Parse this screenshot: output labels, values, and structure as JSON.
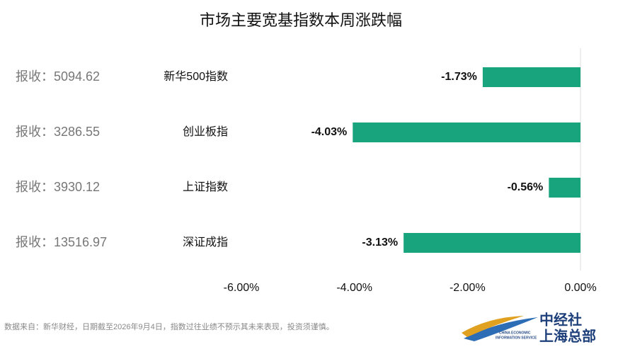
{
  "chart_data": {
    "type": "bar",
    "orientation": "horizontal",
    "title": "市场主要宽基指数本周涨跌幅",
    "categories": [
      "新华500指数",
      "创业板指",
      "上证指数",
      "深证成指"
    ],
    "values": [
      -1.73,
      -4.03,
      -0.56,
      -3.13
    ],
    "value_labels": [
      "-1.73%",
      "-4.03%",
      "-0.56%",
      "-3.13%"
    ],
    "close_labels": [
      "报收：5094.62",
      "报收：3286.55",
      "报收：3930.12",
      "报收：13516.97"
    ],
    "color": "#18a57d",
    "xlim": [
      -6,
      0
    ],
    "xticks": [
      {
        "value": -6,
        "label": "-6.00%"
      },
      {
        "value": -4,
        "label": "-4.00%"
      },
      {
        "value": -2,
        "label": "-2.00%"
      },
      {
        "value": 0,
        "label": "0.00%"
      }
    ],
    "source": "数据来自：新华财经，日期截至2026年9月4日，指数过往业绩不预示其未来表现，投资须谨慎。"
  },
  "logo": {
    "name": "中经社",
    "subtitle": "上海总部",
    "english": [
      "CHINA ECONOMIC",
      "INFORMATION SERVICE"
    ]
  }
}
